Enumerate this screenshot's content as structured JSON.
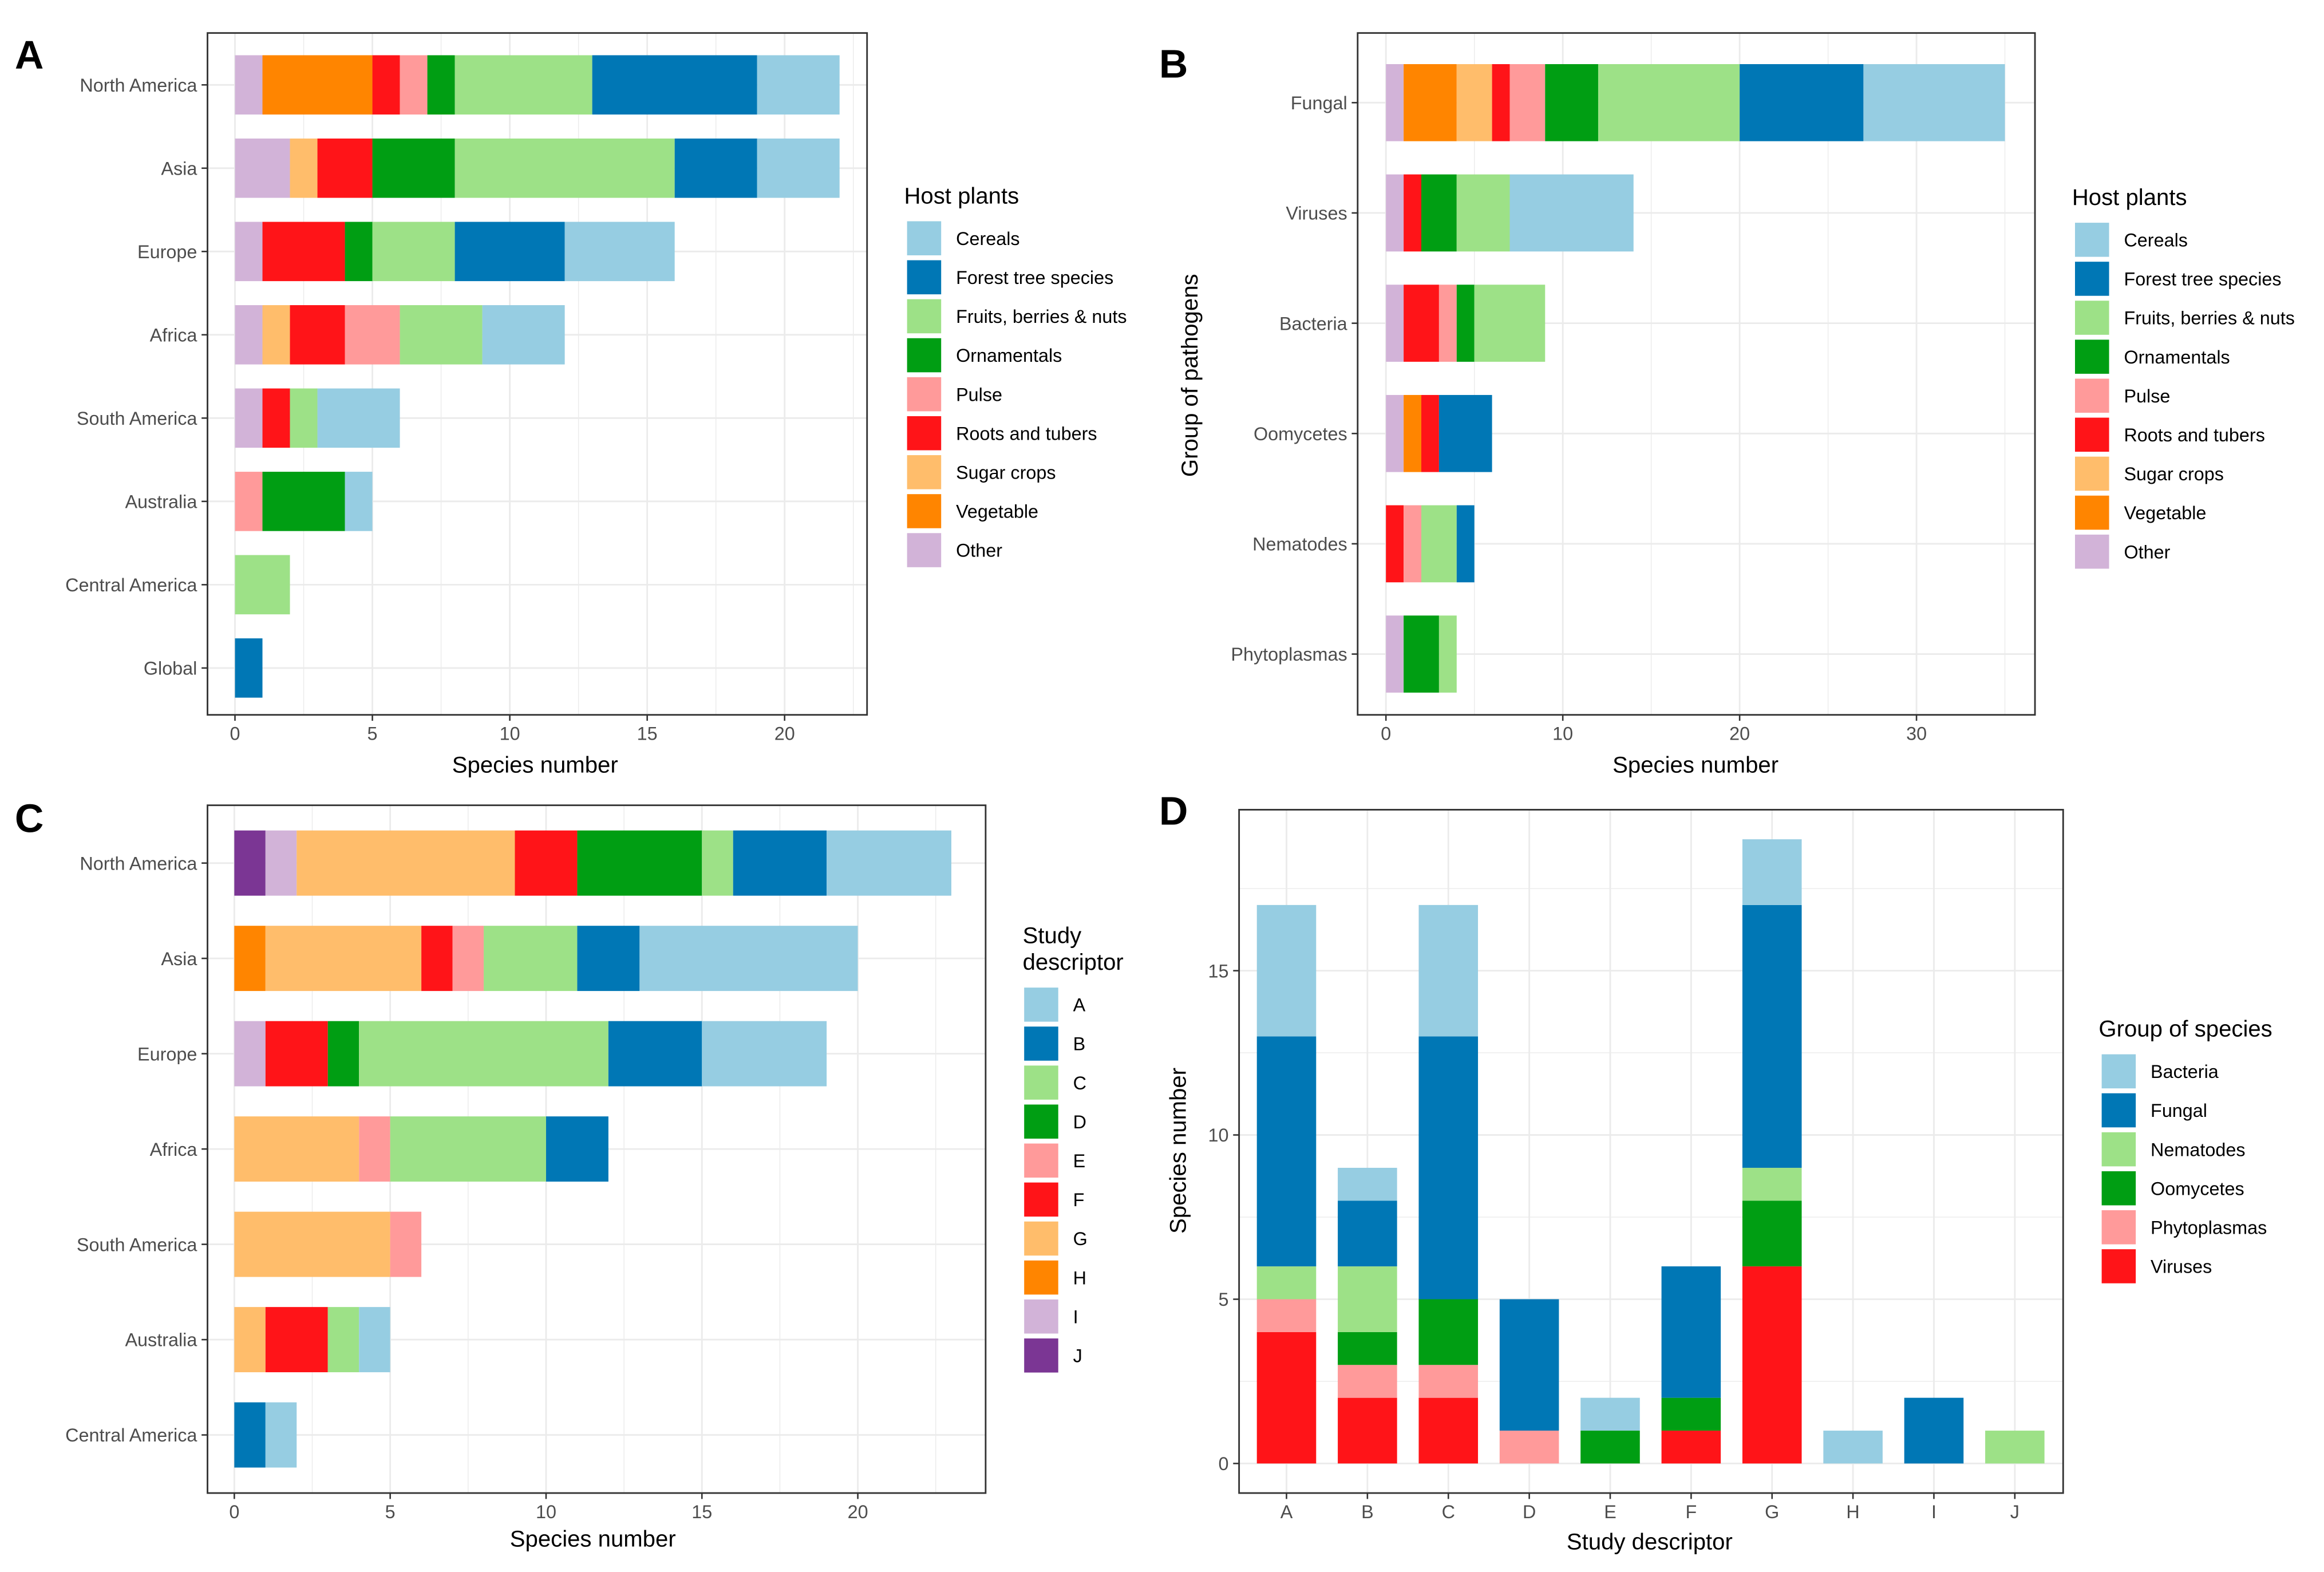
{
  "chart_data": [
    {
      "panel_label": "A",
      "type": "bar",
      "orientation": "horizontal",
      "stacked": true,
      "title": "",
      "xlabel": "Species number",
      "ylabel": "",
      "xlim": [
        -1,
        23
      ],
      "xticks": [
        0,
        5,
        10,
        15,
        20
      ],
      "grid": true,
      "legend_position": "right",
      "legend_title": "Host plants",
      "categories": [
        "North America",
        "Asia",
        "Europe",
        "Africa",
        "South America",
        "Australia",
        "Central America",
        "Global"
      ],
      "series": [
        {
          "name": "Cereals",
          "color": "#96cde2",
          "values": [
            3,
            3,
            4,
            3,
            3,
            1,
            0,
            0
          ]
        },
        {
          "name": "Forest tree species",
          "color": "#0077b5",
          "values": [
            6,
            3,
            4,
            0,
            0,
            0,
            0,
            1
          ]
        },
        {
          "name": "Fruits, berries & nuts",
          "color": "#9de187",
          "values": [
            5,
            8,
            3,
            3,
            1,
            0,
            2,
            0
          ]
        },
        {
          "name": "Ornamentals",
          "color": "#009e13",
          "values": [
            1,
            3,
            1,
            0,
            0,
            3,
            0,
            0
          ]
        },
        {
          "name": "Pulse",
          "color": "#ff9a9a",
          "values": [
            1,
            0,
            0,
            2,
            0,
            1,
            0,
            0
          ]
        },
        {
          "name": "Roots and tubers",
          "color": "#ff1418",
          "values": [
            1,
            2,
            3,
            2,
            1,
            0,
            0,
            0
          ]
        },
        {
          "name": "Sugar crops",
          "color": "#ffbd6b",
          "values": [
            0,
            1,
            0,
            1,
            0,
            0,
            0,
            0
          ]
        },
        {
          "name": "Vegetable",
          "color": "#ff8500",
          "values": [
            4,
            0,
            0,
            0,
            0,
            0,
            0,
            0
          ]
        },
        {
          "name": "Other",
          "color": "#d2b3d8",
          "values": [
            1,
            2,
            1,
            1,
            1,
            0,
            0,
            0
          ]
        }
      ]
    },
    {
      "panel_label": "B",
      "type": "bar",
      "orientation": "horizontal",
      "stacked": true,
      "title": "",
      "xlabel": "Species number",
      "ylabel": "Group of pathogens",
      "xlim": [
        -1.6,
        36.7
      ],
      "xticks": [
        0,
        10,
        20,
        30
      ],
      "grid": true,
      "legend_position": "right",
      "legend_title": "Host plants",
      "categories": [
        "Fungal",
        "Viruses",
        "Bacteria",
        "Oomycetes",
        "Nematodes",
        "Phytoplasmas"
      ],
      "series": [
        {
          "name": "Cereals",
          "color": "#96cde2",
          "values": [
            8,
            7,
            0,
            0,
            0,
            0
          ]
        },
        {
          "name": "Forest tree species",
          "color": "#0077b5",
          "values": [
            7,
            0,
            0,
            3,
            1,
            0
          ]
        },
        {
          "name": "Fruits, berries & nuts",
          "color": "#9de187",
          "values": [
            8,
            3,
            4,
            0,
            2,
            1
          ]
        },
        {
          "name": "Ornamentals",
          "color": "#009e13",
          "values": [
            3,
            2,
            1,
            0,
            0,
            2
          ]
        },
        {
          "name": "Pulse",
          "color": "#ff9a9a",
          "values": [
            2,
            0,
            1,
            0,
            1,
            0
          ]
        },
        {
          "name": "Roots and tubers",
          "color": "#ff1418",
          "values": [
            1,
            1,
            2,
            1,
            1,
            0
          ]
        },
        {
          "name": "Sugar crops",
          "color": "#ffbd6b",
          "values": [
            2,
            0,
            0,
            0,
            0,
            0
          ]
        },
        {
          "name": "Vegetable",
          "color": "#ff8500",
          "values": [
            3,
            0,
            0,
            1,
            0,
            0
          ]
        },
        {
          "name": "Other",
          "color": "#d2b3d8",
          "values": [
            1,
            1,
            1,
            1,
            0,
            1
          ]
        }
      ]
    },
    {
      "panel_label": "C",
      "type": "bar",
      "orientation": "horizontal",
      "stacked": true,
      "title": "",
      "xlabel": "Species number",
      "ylabel": "",
      "xlim": [
        -0.86,
        24.1
      ],
      "xticks": [
        0,
        5,
        10,
        15,
        20
      ],
      "grid": true,
      "legend_position": "right",
      "legend_title": "Study descriptor",
      "categories": [
        "North America",
        "Asia",
        "Europe",
        "Africa",
        "South America",
        "Australia",
        "Central America"
      ],
      "series": [
        {
          "name": "A",
          "color": "#96cde2",
          "values": [
            4,
            7,
            4,
            0,
            0,
            1,
            1
          ]
        },
        {
          "name": "B",
          "color": "#0077b5",
          "values": [
            3,
            2,
            3,
            2,
            0,
            0,
            1
          ]
        },
        {
          "name": "C",
          "color": "#9de187",
          "values": [
            1,
            3,
            8,
            5,
            0,
            1,
            0
          ]
        },
        {
          "name": "D",
          "color": "#009e13",
          "values": [
            4,
            0,
            1,
            0,
            0,
            0,
            0
          ]
        },
        {
          "name": "E",
          "color": "#ff9a9a",
          "values": [
            0,
            1,
            0,
            1,
            1,
            0,
            0
          ]
        },
        {
          "name": "F",
          "color": "#ff1418",
          "values": [
            2,
            1,
            2,
            0,
            0,
            2,
            0
          ]
        },
        {
          "name": "G",
          "color": "#ffbd6b",
          "values": [
            7,
            5,
            0,
            4,
            5,
            1,
            0
          ]
        },
        {
          "name": "H",
          "color": "#ff8500",
          "values": [
            0,
            1,
            0,
            0,
            0,
            0,
            0
          ]
        },
        {
          "name": "I",
          "color": "#d2b3d8",
          "values": [
            1,
            0,
            1,
            0,
            0,
            0,
            0
          ]
        },
        {
          "name": "J",
          "color": "#7b3694",
          "values": [
            1,
            0,
            0,
            0,
            0,
            0,
            0
          ]
        }
      ]
    },
    {
      "panel_label": "D",
      "type": "bar",
      "orientation": "vertical",
      "stacked": true,
      "title": "",
      "xlabel": "Study descriptor",
      "ylabel": "Species number",
      "ylim": [
        -0.9,
        19.9
      ],
      "yticks": [
        0,
        5,
        10,
        15
      ],
      "grid": true,
      "legend_position": "right",
      "legend_title": "Group of species",
      "categories": [
        "A",
        "B",
        "C",
        "D",
        "E",
        "F",
        "G",
        "H",
        "I",
        "J"
      ],
      "series": [
        {
          "name": "Bacteria",
          "color": "#96cde2",
          "values": [
            4,
            1,
            4,
            0,
            1,
            0,
            2,
            1,
            0,
            0
          ]
        },
        {
          "name": "Fungal",
          "color": "#0077b5",
          "values": [
            7,
            2,
            8,
            4,
            0,
            4,
            8,
            0,
            2,
            0
          ]
        },
        {
          "name": "Nematodes",
          "color": "#9de187",
          "values": [
            1,
            2,
            0,
            0,
            0,
            0,
            1,
            0,
            0,
            1
          ]
        },
        {
          "name": "Oomycetes",
          "color": "#009e13",
          "values": [
            0,
            1,
            2,
            0,
            1,
            1,
            2,
            0,
            0,
            0
          ]
        },
        {
          "name": "Phytoplasmas",
          "color": "#ff9a9a",
          "values": [
            1,
            1,
            1,
            1,
            0,
            0,
            0,
            0,
            0,
            0
          ]
        },
        {
          "name": "Viruses",
          "color": "#ff1418",
          "values": [
            4,
            2,
            2,
            0,
            0,
            1,
            6,
            0,
            0,
            0
          ]
        }
      ]
    }
  ]
}
